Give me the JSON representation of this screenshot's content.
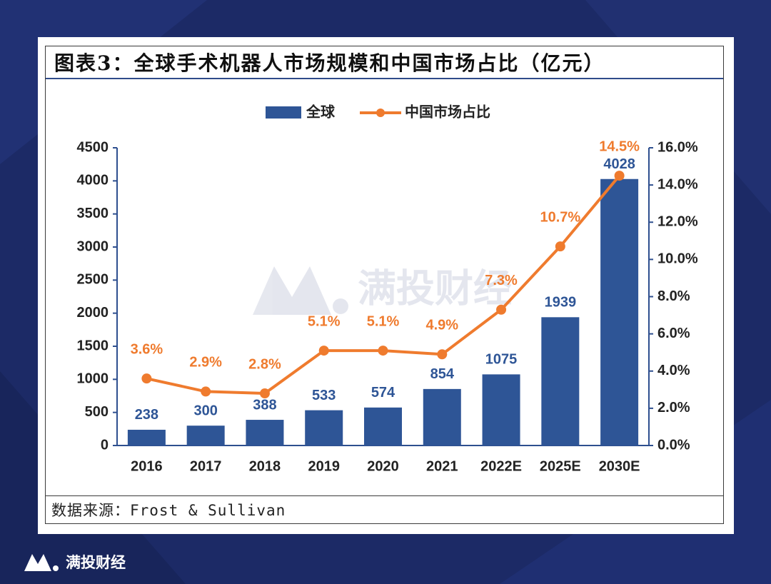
{
  "title": "图表3：全球手术机器人市场规模和中国市场占比（亿元）",
  "source": "数据来源：Frost & Sullivan",
  "watermark": "满投财经",
  "footer_brand": "满投财经",
  "colors": {
    "bar": "#2e5596",
    "line": "#ef7b2e",
    "axis": "#2e4f8f",
    "background": "#1c2a66"
  },
  "chart_data": {
    "type": "bar",
    "categories": [
      "2016",
      "2017",
      "2018",
      "2019",
      "2020",
      "2021",
      "2022E",
      "2025E",
      "2030E"
    ],
    "series": [
      {
        "name": "全球",
        "type": "bar",
        "axis": "left",
        "values": [
          238,
          300,
          388,
          533,
          574,
          854,
          1075,
          1939,
          4028
        ],
        "labels": [
          "238",
          "300",
          "388",
          "533",
          "574",
          "854",
          "1075",
          "1939",
          "4028"
        ]
      },
      {
        "name": "中国市场占比",
        "type": "line",
        "axis": "right",
        "values": [
          3.6,
          2.9,
          2.8,
          5.1,
          5.1,
          4.9,
          7.3,
          10.7,
          14.5
        ],
        "labels": [
          "3.6%",
          "2.9%",
          "2.8%",
          "5.1%",
          "5.1%",
          "4.9%",
          "7.3%",
          "10.7%",
          "14.5%"
        ]
      }
    ],
    "y_left": {
      "ticks": [
        "0",
        "500",
        "1000",
        "1500",
        "2000",
        "2500",
        "3000",
        "3500",
        "4000",
        "4500"
      ],
      "ylim": [
        0,
        4500
      ]
    },
    "y_right": {
      "ticks": [
        "0.0%",
        "2.0%",
        "4.0%",
        "6.0%",
        "8.0%",
        "10.0%",
        "12.0%",
        "14.0%",
        "16.0%"
      ],
      "ylim": [
        0,
        16
      ]
    },
    "legend_position": "top-center",
    "grid": false
  }
}
